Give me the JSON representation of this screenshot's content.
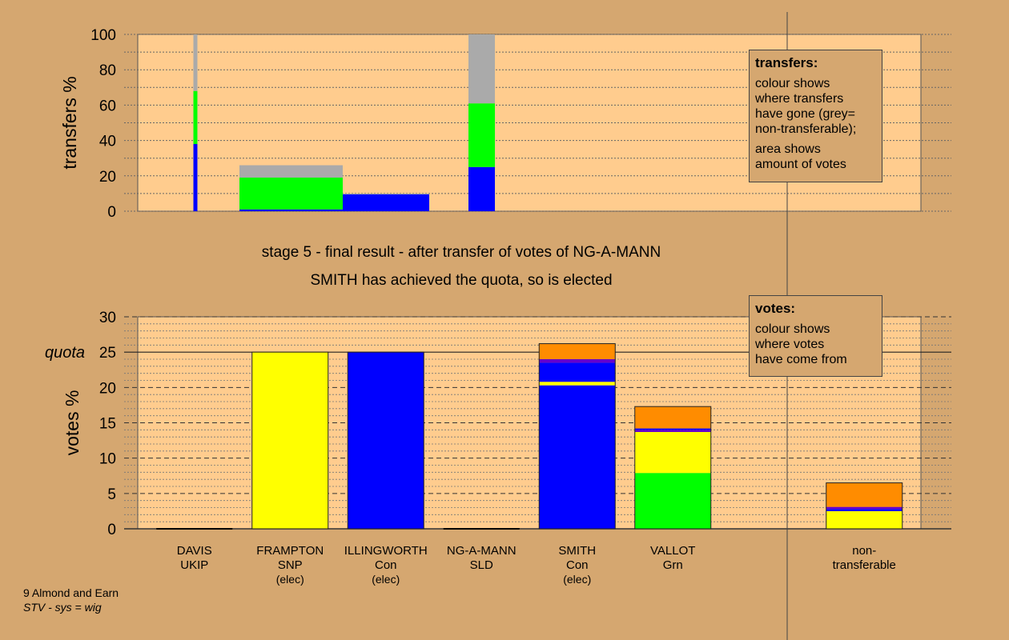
{
  "page": {
    "title_line1": "stage 5 - final result - after transfer of votes of NG-A-MANN",
    "title_line2": "SMITH has achieved the quota, so is elected",
    "footer_line1": "9 Almond and Earn",
    "footer_line2": "STV - sys = wig"
  },
  "colors": {
    "background": "#d5a770",
    "plot_background": "#ffcc8e",
    "Con": "#0000ff",
    "SNP": "#ffff00",
    "Grn": "#00ff00",
    "Lab": "#ff8c00",
    "Other": "#6600cc",
    "non_transferable": "#aaaaaa"
  },
  "legend_transfers": {
    "title": "transfers:",
    "lines1": [
      "colour shows",
      "where transfers",
      "have gone (grey=",
      "non-transferable);"
    ],
    "lines2": [
      "area shows",
      "amount of votes"
    ]
  },
  "legend_votes": {
    "title": "votes:",
    "lines": [
      "colour shows",
      "where votes",
      "have come from"
    ]
  },
  "chart_data": [
    {
      "type": "bar",
      "name": "transfers",
      "ylabel": "transfers %",
      "ylim": [
        0,
        100
      ],
      "yticks": [
        0,
        20,
        40,
        60,
        80,
        100
      ],
      "grid": "dotted, every 10",
      "bars": [
        {
          "under": "DAVIS",
          "segments": [
            {
              "party": "Con",
              "value": 38
            },
            {
              "party": "Grn",
              "value": 30
            },
            {
              "party": "non_transferable",
              "value": 32
            }
          ]
        },
        {
          "under": "FRAMPTON",
          "segments": [
            {
              "party": "Con",
              "value": 1
            },
            {
              "party": "Grn",
              "value": 18
            },
            {
              "party": "non_transferable",
              "value": 7
            }
          ]
        },
        {
          "under": "ILLINGWORTH",
          "segments": [
            {
              "party": "Con",
              "value": 9.5
            },
            {
              "party": "non_transferable",
              "value": 0.5
            }
          ]
        },
        {
          "under": "NG-A-MANN",
          "segments": [
            {
              "party": "Con",
              "value": 25
            },
            {
              "party": "Grn",
              "value": 36
            },
            {
              "party": "non_transferable",
              "value": 39
            }
          ]
        }
      ]
    },
    {
      "type": "bar",
      "name": "votes",
      "ylabel": "votes %",
      "ylim": [
        0,
        30
      ],
      "yticks": [
        0,
        5,
        10,
        15,
        20,
        25,
        30
      ],
      "quota": 25,
      "quota_label": "quota",
      "grid": "dashed every 5, dotted every 1",
      "bars": [
        {
          "name": "DAVIS",
          "party": "UKIP",
          "note": "",
          "segments": []
        },
        {
          "name": "FRAMPTON",
          "party": "SNP",
          "note": "(elec)",
          "segments": [
            {
              "party": "SNP",
              "value": 25
            }
          ]
        },
        {
          "name": "ILLINGWORTH",
          "party": "Con",
          "note": "(elec)",
          "segments": [
            {
              "party": "Con",
              "value": 25
            }
          ]
        },
        {
          "name": "NG-A-MANN",
          "party": "SLD",
          "note": "",
          "segments": []
        },
        {
          "name": "SMITH",
          "party": "Con",
          "note": "(elec)",
          "segments": [
            {
              "party": "Con",
              "value": 20.3
            },
            {
              "party": "SNP",
              "value": 0.5
            },
            {
              "party": "Con",
              "value": 2.7
            },
            {
              "party": "Other",
              "value": 0.5
            },
            {
              "party": "Lab",
              "value": 2.2
            }
          ]
        },
        {
          "name": "VALLOT",
          "party": "Grn",
          "note": "",
          "segments": [
            {
              "party": "Grn",
              "value": 7.9
            },
            {
              "party": "SNP",
              "value": 5.8
            },
            {
              "party": "Other",
              "value": 0.3
            },
            {
              "party": "Con",
              "value": 0.2
            },
            {
              "party": "Lab",
              "value": 3.1
            }
          ]
        },
        {
          "name": "",
          "party": "",
          "note": "",
          "segments": []
        },
        {
          "name": "non-",
          "party": "transferable",
          "note": "",
          "segments": [
            {
              "party": "SNP",
              "value": 2.5
            },
            {
              "party": "Con",
              "value": 0.3
            },
            {
              "party": "Other",
              "value": 0.3
            },
            {
              "party": "Lab",
              "value": 3.4
            }
          ]
        }
      ]
    }
  ]
}
